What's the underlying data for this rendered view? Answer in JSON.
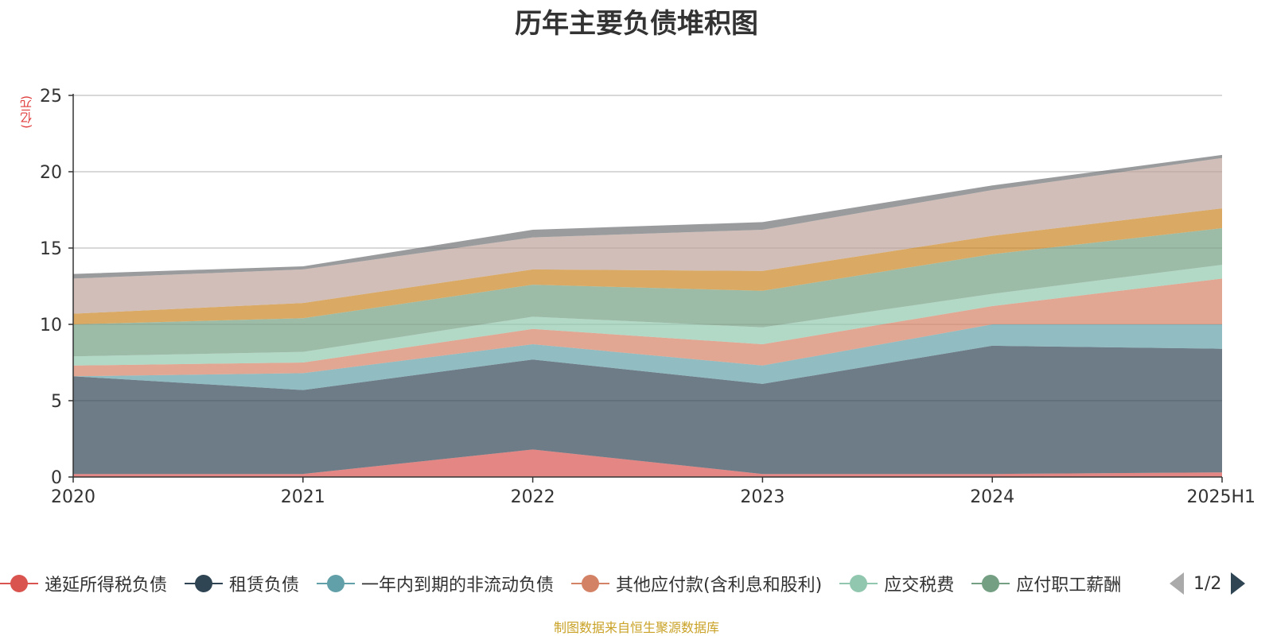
{
  "page": {
    "title": "历年主要负债堆积图",
    "source_note": "制图数据来自恒生聚源数据库"
  },
  "legend": {
    "page_indicator": "1/2"
  },
  "chart_data": {
    "type": "area",
    "stacked": true,
    "title": "历年主要负债堆积图",
    "unit_label": "(亿元)",
    "x": [
      "2020",
      "2021",
      "2022",
      "2023",
      "2024",
      "2025H1"
    ],
    "ylim": [
      0,
      25
    ],
    "yticks": [
      0,
      5,
      10,
      15,
      20,
      25
    ],
    "grid": true,
    "legend_position": "bottom",
    "series": [
      {
        "name": "递延所得税负债",
        "color": "#d9534f",
        "values": [
          0.2,
          0.2,
          1.8,
          0.2,
          0.2,
          0.3
        ]
      },
      {
        "name": "租赁负债",
        "color": "#2f4554",
        "values": [
          6.4,
          5.5,
          5.9,
          5.9,
          8.4,
          8.1
        ]
      },
      {
        "name": "一年内到期的非流动负债",
        "color": "#61a0a8",
        "values": [
          0.0,
          1.1,
          1.0,
          1.2,
          1.4,
          1.6
        ]
      },
      {
        "name": "其他应付款(含利息和股利)",
        "color": "#d48265",
        "values": [
          0.7,
          0.7,
          1.0,
          1.4,
          1.2,
          3.0
        ]
      },
      {
        "name": "应交税费",
        "color": "#91c7ae",
        "values": [
          0.6,
          0.7,
          0.8,
          1.1,
          0.8,
          0.9
        ]
      },
      {
        "name": "应付职工薪酬",
        "color": "#749f83",
        "values": [
          2.1,
          2.2,
          2.1,
          2.4,
          2.6,
          2.4
        ]
      },
      {
        "name": "",
        "color": "#ca8622",
        "values": [
          0.7,
          1.0,
          1.0,
          1.3,
          1.2,
          1.3
        ]
      },
      {
        "name": "",
        "color": "#bda29a",
        "values": [
          2.3,
          2.2,
          2.1,
          2.7,
          3.0,
          3.3
        ]
      },
      {
        "name": "",
        "color": "#6e7074",
        "values": [
          0.3,
          0.2,
          0.5,
          0.5,
          0.3,
          0.2
        ]
      }
    ]
  }
}
